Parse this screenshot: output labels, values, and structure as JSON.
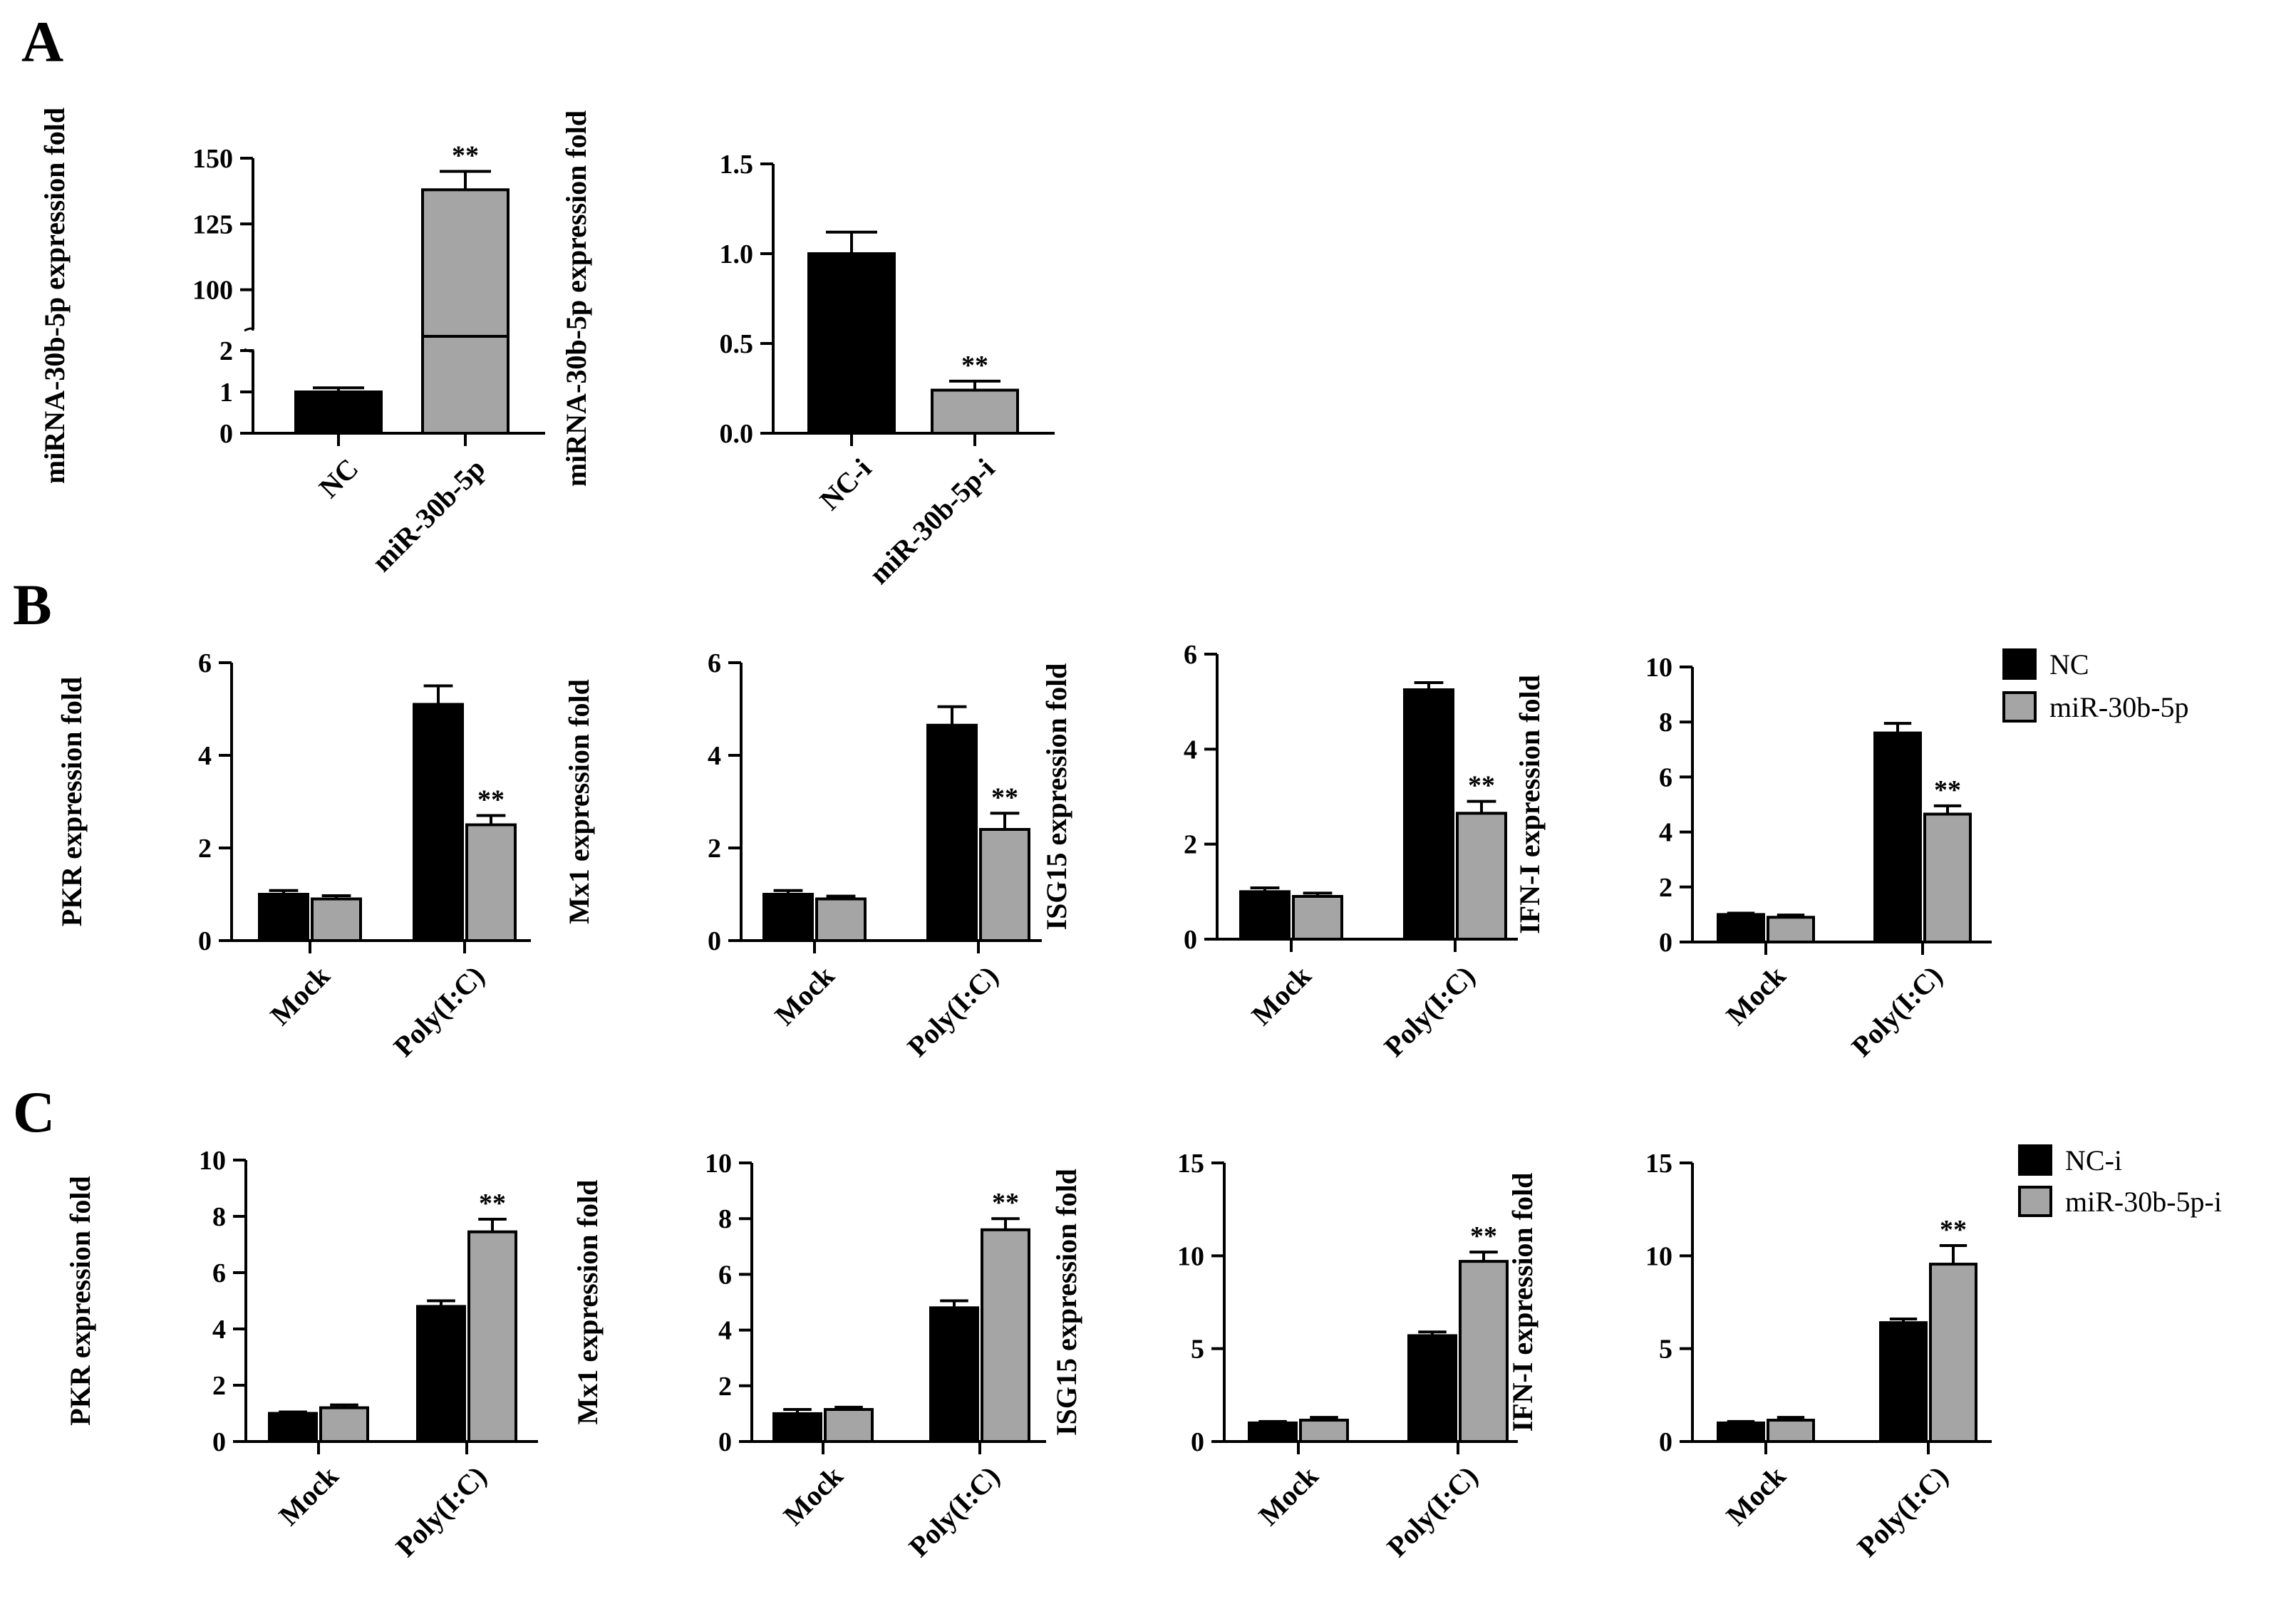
{
  "panels": [
    "A",
    "B",
    "C"
  ],
  "colors": {
    "control": "#000000",
    "treated": "#a5a5a5",
    "axis": "#000000"
  },
  "legends": {
    "B": [
      "NC",
      "miR-30b-5p"
    ],
    "C": [
      "NC-i",
      "miR-30b-5p-i"
    ]
  },
  "chart_data": [
    {
      "id": "A1",
      "panel": "A",
      "type": "bar",
      "title": "",
      "xlabel": "",
      "ylabel": "miRNA-30b-5p expression fold",
      "axis_break": {
        "lower": [
          0,
          2
        ],
        "upper": [
          85,
          150
        ]
      },
      "lower_ticks": [
        0,
        1,
        2
      ],
      "upper_ticks": [
        100,
        125,
        150
      ],
      "categories": [
        "NC",
        "miR-30b-5p"
      ],
      "values": [
        1.0,
        138.0
      ],
      "errors": [
        0.1,
        7.0
      ],
      "significance": [
        "",
        "**"
      ]
    },
    {
      "id": "A2",
      "panel": "A",
      "type": "bar",
      "title": "",
      "xlabel": "",
      "ylabel": "miRNA-30b-5p expression fold",
      "ylim": [
        0,
        1.5
      ],
      "ticks": [
        0.0,
        0.5,
        1.0,
        1.5
      ],
      "tick_labels": [
        "0.0",
        "0.5",
        "1.0",
        "1.5"
      ],
      "categories": [
        "NC-i",
        "miR-30b-5p-i"
      ],
      "values": [
        1.0,
        0.24
      ],
      "errors": [
        0.12,
        0.05
      ],
      "significance": [
        "",
        "**"
      ]
    },
    {
      "id": "B1",
      "panel": "B",
      "type": "bar",
      "ylabel": "PKR expression fold",
      "ylim": [
        0,
        6
      ],
      "ticks": [
        0,
        2,
        4,
        6
      ],
      "tick_labels": [
        "0",
        "2",
        "4",
        "6"
      ],
      "categories": [
        "Mock",
        "Poly(I:C)"
      ],
      "series": [
        {
          "name": "NC",
          "values": [
            1.0,
            5.1
          ],
          "errors": [
            0.08,
            0.4
          ],
          "significance": [
            "",
            ""
          ]
        },
        {
          "name": "miR-30b-5p",
          "values": [
            0.9,
            2.5
          ],
          "errors": [
            0.07,
            0.2
          ],
          "significance": [
            "",
            "**"
          ]
        }
      ]
    },
    {
      "id": "B2",
      "panel": "B",
      "type": "bar",
      "ylabel": "Mx1 expression fold",
      "ylim": [
        0,
        6
      ],
      "ticks": [
        0,
        2,
        4,
        6
      ],
      "tick_labels": [
        "0",
        "2",
        "4",
        "6"
      ],
      "categories": [
        "Mock",
        "Poly(I:C)"
      ],
      "series": [
        {
          "name": "NC",
          "values": [
            1.0,
            4.65
          ],
          "errors": [
            0.08,
            0.4
          ],
          "significance": [
            "",
            ""
          ]
        },
        {
          "name": "miR-30b-5p",
          "values": [
            0.9,
            2.4
          ],
          "errors": [
            0.06,
            0.35
          ],
          "significance": [
            "",
            "**"
          ]
        }
      ]
    },
    {
      "id": "B3",
      "panel": "B",
      "type": "bar",
      "ylabel": "ISG15 expression fold",
      "ylim": [
        0,
        6
      ],
      "ticks": [
        0,
        2,
        4,
        6
      ],
      "tick_labels": [
        "0",
        "2",
        "4",
        "6"
      ],
      "categories": [
        "Mock",
        "Poly(I:C)"
      ],
      "series": [
        {
          "name": "NC",
          "values": [
            1.0,
            5.25
          ],
          "errors": [
            0.08,
            0.15
          ],
          "significance": [
            "",
            ""
          ]
        },
        {
          "name": "miR-30b-5p",
          "values": [
            0.9,
            2.65
          ],
          "errors": [
            0.07,
            0.25
          ],
          "significance": [
            "",
            "**"
          ]
        }
      ]
    },
    {
      "id": "B4",
      "panel": "B",
      "type": "bar",
      "ylabel": "IFN-I expression fold",
      "ylim": [
        0,
        10
      ],
      "ticks": [
        0,
        2,
        4,
        6,
        8,
        10
      ],
      "tick_labels": [
        "0",
        "2",
        "4",
        "6",
        "8",
        "10"
      ],
      "categories": [
        "Mock",
        "Poly(I:C)"
      ],
      "series": [
        {
          "name": "NC",
          "values": [
            1.0,
            7.6
          ],
          "errors": [
            0.05,
            0.35
          ],
          "significance": [
            "",
            ""
          ]
        },
        {
          "name": "miR-30b-5p",
          "values": [
            0.9,
            4.65
          ],
          "errors": [
            0.08,
            0.3
          ],
          "significance": [
            "",
            "**"
          ]
        }
      ]
    },
    {
      "id": "C1",
      "panel": "C",
      "type": "bar",
      "ylabel": "PKR expression fold",
      "ylim": [
        0,
        10
      ],
      "ticks": [
        0,
        2,
        4,
        6,
        8,
        10
      ],
      "tick_labels": [
        "0",
        "2",
        "4",
        "6",
        "8",
        "10"
      ],
      "categories": [
        "Mock",
        "Poly(I:C)"
      ],
      "series": [
        {
          "name": "NC-i",
          "values": [
            1.0,
            4.8
          ],
          "errors": [
            0.05,
            0.2
          ],
          "significance": [
            "",
            ""
          ]
        },
        {
          "name": "miR-30b-5p-i",
          "values": [
            1.2,
            7.45
          ],
          "errors": [
            0.1,
            0.45
          ],
          "significance": [
            "",
            "**"
          ]
        }
      ]
    },
    {
      "id": "C2",
      "panel": "C",
      "type": "bar",
      "ylabel": "Mx1 expression fold",
      "ylim": [
        0,
        10
      ],
      "ticks": [
        0,
        2,
        4,
        6,
        8,
        10
      ],
      "tick_labels": [
        "0",
        "2",
        "4",
        "6",
        "8",
        "10"
      ],
      "categories": [
        "Mock",
        "Poly(I:C)"
      ],
      "series": [
        {
          "name": "NC-i",
          "values": [
            1.0,
            4.8
          ],
          "errors": [
            0.15,
            0.25
          ],
          "significance": [
            "",
            ""
          ]
        },
        {
          "name": "miR-30b-5p-i",
          "values": [
            1.15,
            7.6
          ],
          "errors": [
            0.08,
            0.4
          ],
          "significance": [
            "",
            "**"
          ]
        }
      ]
    },
    {
      "id": "C3",
      "panel": "C",
      "type": "bar",
      "ylabel": "ISG15 expression fold",
      "ylim": [
        0,
        15
      ],
      "ticks": [
        0,
        5,
        10,
        15
      ],
      "tick_labels": [
        "0",
        "5",
        "10",
        "15"
      ],
      "categories": [
        "Mock",
        "Poly(I:C)"
      ],
      "series": [
        {
          "name": "NC-i",
          "values": [
            1.0,
            5.7
          ],
          "errors": [
            0.08,
            0.2
          ],
          "significance": [
            "",
            ""
          ]
        },
        {
          "name": "miR-30b-5p-i",
          "values": [
            1.15,
            9.7
          ],
          "errors": [
            0.15,
            0.5
          ],
          "significance": [
            "",
            "**"
          ]
        }
      ]
    },
    {
      "id": "C4",
      "panel": "C",
      "type": "bar",
      "ylabel": "IFN-I expression fold",
      "ylim": [
        0,
        15
      ],
      "ticks": [
        0,
        5,
        10,
        15
      ],
      "tick_labels": [
        "0",
        "5",
        "10",
        "15"
      ],
      "categories": [
        "Mock",
        "Poly(I:C)"
      ],
      "series": [
        {
          "name": "NC-i",
          "values": [
            1.0,
            6.4
          ],
          "errors": [
            0.08,
            0.2
          ],
          "significance": [
            "",
            ""
          ]
        },
        {
          "name": "miR-30b-5p-i",
          "values": [
            1.15,
            9.55
          ],
          "errors": [
            0.15,
            1.0
          ],
          "significance": [
            "",
            "**"
          ]
        }
      ]
    }
  ]
}
